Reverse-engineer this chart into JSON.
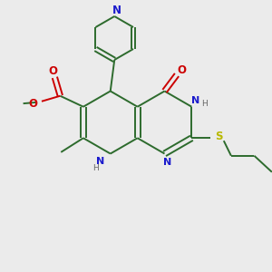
{
  "bg_color": "#ebebeb",
  "bond_color": "#2d6b2d",
  "n_color": "#1a1acc",
  "o_color": "#cc0000",
  "s_color": "#b8b800",
  "line_width": 1.4,
  "figsize": [
    3.0,
    3.0
  ],
  "dpi": 100,
  "xlim": [
    0,
    10
  ],
  "ylim": [
    0,
    10
  ]
}
